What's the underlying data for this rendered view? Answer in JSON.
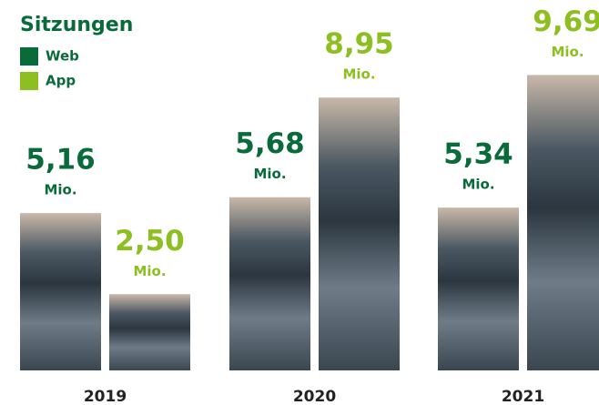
{
  "chart_data": {
    "type": "bar",
    "title": "Sitzungen",
    "categories": [
      "2019",
      "2020",
      "2021"
    ],
    "unit": "Mio.",
    "series": [
      {
        "name": "Web",
        "color": "#0a6b3a",
        "values": [
          5.16,
          5.68,
          5.34
        ],
        "value_labels": [
          "5,16",
          "5,68",
          "5,34"
        ]
      },
      {
        "name": "App",
        "color": "#8cbf1f",
        "values": [
          2.5,
          8.95,
          9.69
        ],
        "value_labels": [
          "2,50",
          "8,95",
          "9,69"
        ]
      }
    ],
    "legend": "top-left"
  }
}
